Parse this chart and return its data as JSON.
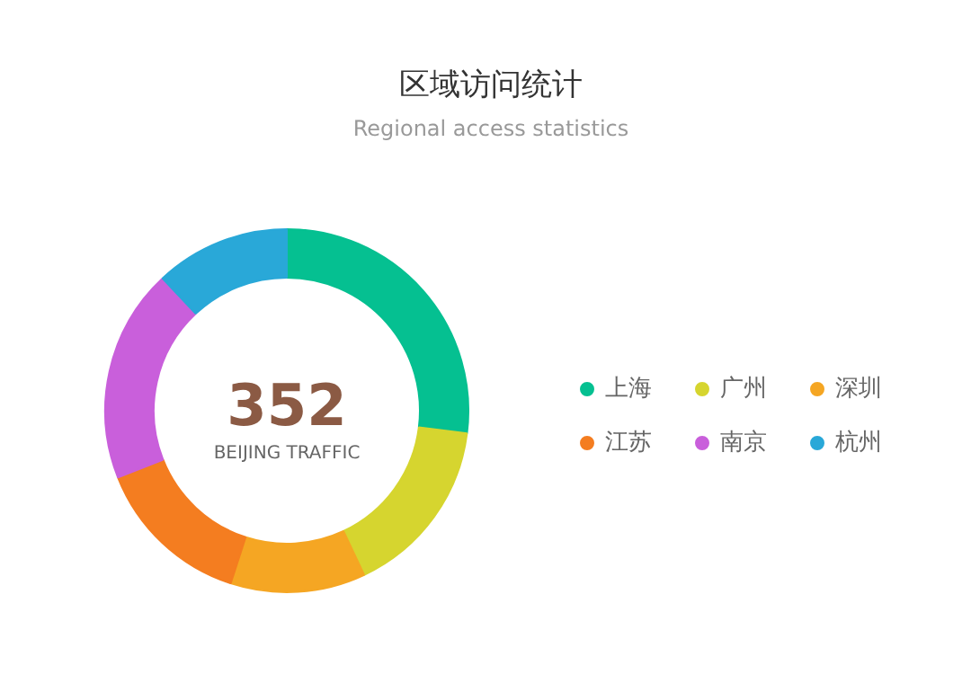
{
  "chart_data": {
    "type": "donut",
    "title": "区域访问统计",
    "subtitle": "Regional access statistics",
    "categories": [
      "上海",
      "广州",
      "深圳",
      "江苏",
      "南京",
      "杭州"
    ],
    "values": [
      27,
      16,
      12,
      14,
      19,
      12
    ],
    "colors": [
      "#05c091",
      "#d6d52f",
      "#f5a623",
      "#f47d20",
      "#c95fdb",
      "#29a8d8"
    ],
    "annotations": [
      "352",
      "BEIJING TRAFFIC"
    ],
    "legend": "right"
  }
}
